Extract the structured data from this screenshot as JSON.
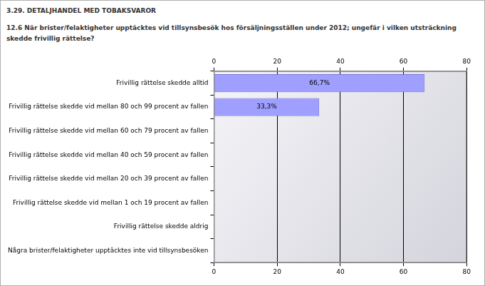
{
  "chart_data": {
    "type": "bar",
    "title": "3.29. DETALJHANDEL MED TOBAKSVAROR",
    "subtitle": "12.6 När brister/felaktigheter upptäcktes vid tillsynsbesök hos försäljningsställen under 2012; ungefär i vilken utsträckning skedde frivillig rättelse?",
    "categories": [
      "Frivillig rättelse skedde alltid",
      "Frivillig rättelse skedde vid mellan 80 och 99 procent av fallen",
      "Frivillig rättelse skedde vid mellan 60 och 79 procent av fallen",
      "Frivillig rättelse skedde vid mellan 40 och 59 procent av fallen",
      "Frivillig rättelse skedde vid mellan 20 och 39 procent av fallen",
      "Frivillig rättelse skedde vid mellan 1 och 19 procent av fallen",
      "Frivillig rättelse skedde aldrig",
      "Några brister/felaktigheter upptäcktes inte vid tillsynsbesöken"
    ],
    "values": [
      66.7,
      33.3,
      0,
      0,
      0,
      0,
      0,
      0
    ],
    "value_labels": [
      "66,7%",
      "33,3%",
      null,
      null,
      null,
      null,
      null,
      null
    ],
    "color": "#9f9fff",
    "orientation": "horizontal",
    "xlim": [
      0,
      80
    ],
    "xticks": [
      0,
      20,
      40,
      60,
      80
    ],
    "grid": true,
    "data_labels": true
  }
}
